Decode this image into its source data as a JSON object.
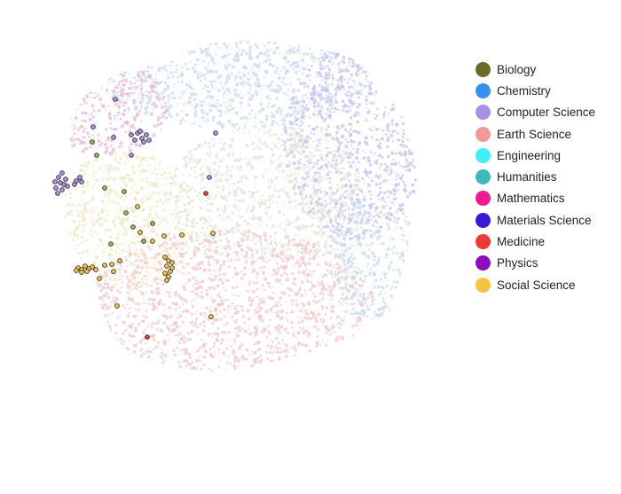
{
  "chart_data": {
    "type": "scatter",
    "title": "",
    "xlabel": "",
    "ylabel": "",
    "grid": false,
    "axes_visible": false,
    "legend_position": "top-right",
    "background_cloud": "dense translucent embedding of documents colored by field",
    "series": [
      {
        "name": "Biology",
        "color": "#6b6b2c"
      },
      {
        "name": "Chemistry",
        "color": "#3b8ff0"
      },
      {
        "name": "Computer Science",
        "color": "#a98fe6"
      },
      {
        "name": "Earth Science",
        "color": "#f09a96"
      },
      {
        "name": "Engineering",
        "color": "#3ff0f6"
      },
      {
        "name": "Humanities",
        "color": "#3fb8bf"
      },
      {
        "name": "Mathematics",
        "color": "#ee1c8f"
      },
      {
        "name": "Materials Science",
        "color": "#3a1ad8"
      },
      {
        "name": "Medicine",
        "color": "#ec3a36"
      },
      {
        "name": "Physics",
        "color": "#8c0fbf"
      },
      {
        "name": "Social Science",
        "color": "#f5c342"
      }
    ]
  }
}
